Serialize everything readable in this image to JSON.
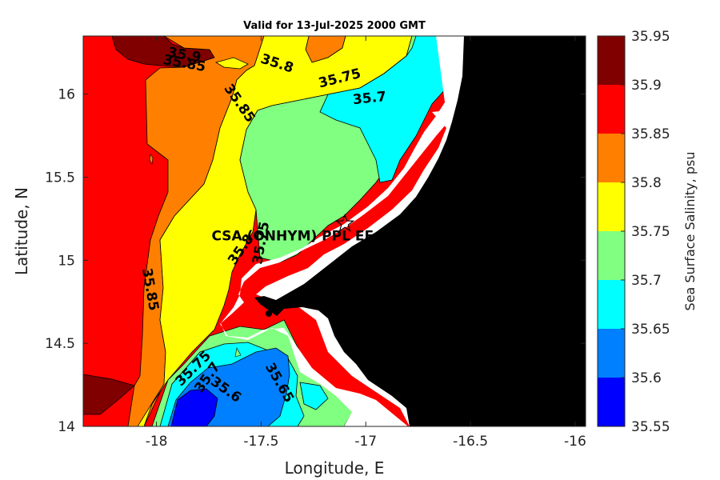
{
  "title": "Valid for 13-Jul-2025 2000 GMT",
  "colors": {
    "bin_35_55": "#0000ff",
    "bin_35_60": "#0080ff",
    "bin_35_65": "#00ffff",
    "bin_35_70": "#80ff80",
    "bin_35_75": "#ffff00",
    "bin_35_80": "#ff8000",
    "bin_35_85": "#ff0000",
    "bin_35_90": "#800000",
    "land": "#000000",
    "nodata": "#ffffff"
  },
  "chart_data": {
    "type": "heatmap",
    "title": "Valid for 13-Jul-2025 2000 GMT",
    "xlabel": "Longitude, E",
    "ylabel": "Latitude, N",
    "xlim": [
      -18.35,
      -15.95
    ],
    "ylim": [
      14.0,
      16.35
    ],
    "x_ticks": [
      "-18",
      "-17.5",
      "-17",
      "-16.5",
      "-16"
    ],
    "y_ticks": [
      "14",
      "14.5",
      "15",
      "15.5",
      "16"
    ],
    "colorbar": {
      "label": "Sea Surface Salinity, psu",
      "levels": [
        "35.55",
        "35.6",
        "35.65",
        "35.7",
        "35.75",
        "35.8",
        "35.85",
        "35.9",
        "35.95"
      ],
      "range": [
        35.55,
        35.95
      ]
    },
    "contour_labels": [
      {
        "text": "35.9",
        "lon": -17.87,
        "lat": 16.21
      },
      {
        "text": "35.85",
        "lon": -17.87,
        "lat": 16.16
      },
      {
        "text": "35.8",
        "lon": -17.43,
        "lat": 16.16
      },
      {
        "text": "35.75",
        "lon": -17.12,
        "lat": 16.07
      },
      {
        "text": "35.7",
        "lon": -16.98,
        "lat": 15.95
      },
      {
        "text": "35.85",
        "lon": -17.62,
        "lat": 15.93
      },
      {
        "text": "35.8",
        "lon": -17.58,
        "lat": 15.05
      },
      {
        "text": "35.75",
        "lon": -17.48,
        "lat": 15.1
      },
      {
        "text": "35.85",
        "lon": -18.05,
        "lat": 14.82
      },
      {
        "text": "35.75",
        "lon": -17.81,
        "lat": 14.33
      },
      {
        "text": "35.7",
        "lon": -17.74,
        "lat": 14.28
      },
      {
        "text": "35.6",
        "lon": -17.68,
        "lat": 14.2
      },
      {
        "text": "35.65",
        "lon": -17.43,
        "lat": 14.25
      }
    ],
    "site": {
      "name": "CSA (ONHYM) PPL EE",
      "lon": -17.1,
      "lat": 15.22
    }
  }
}
